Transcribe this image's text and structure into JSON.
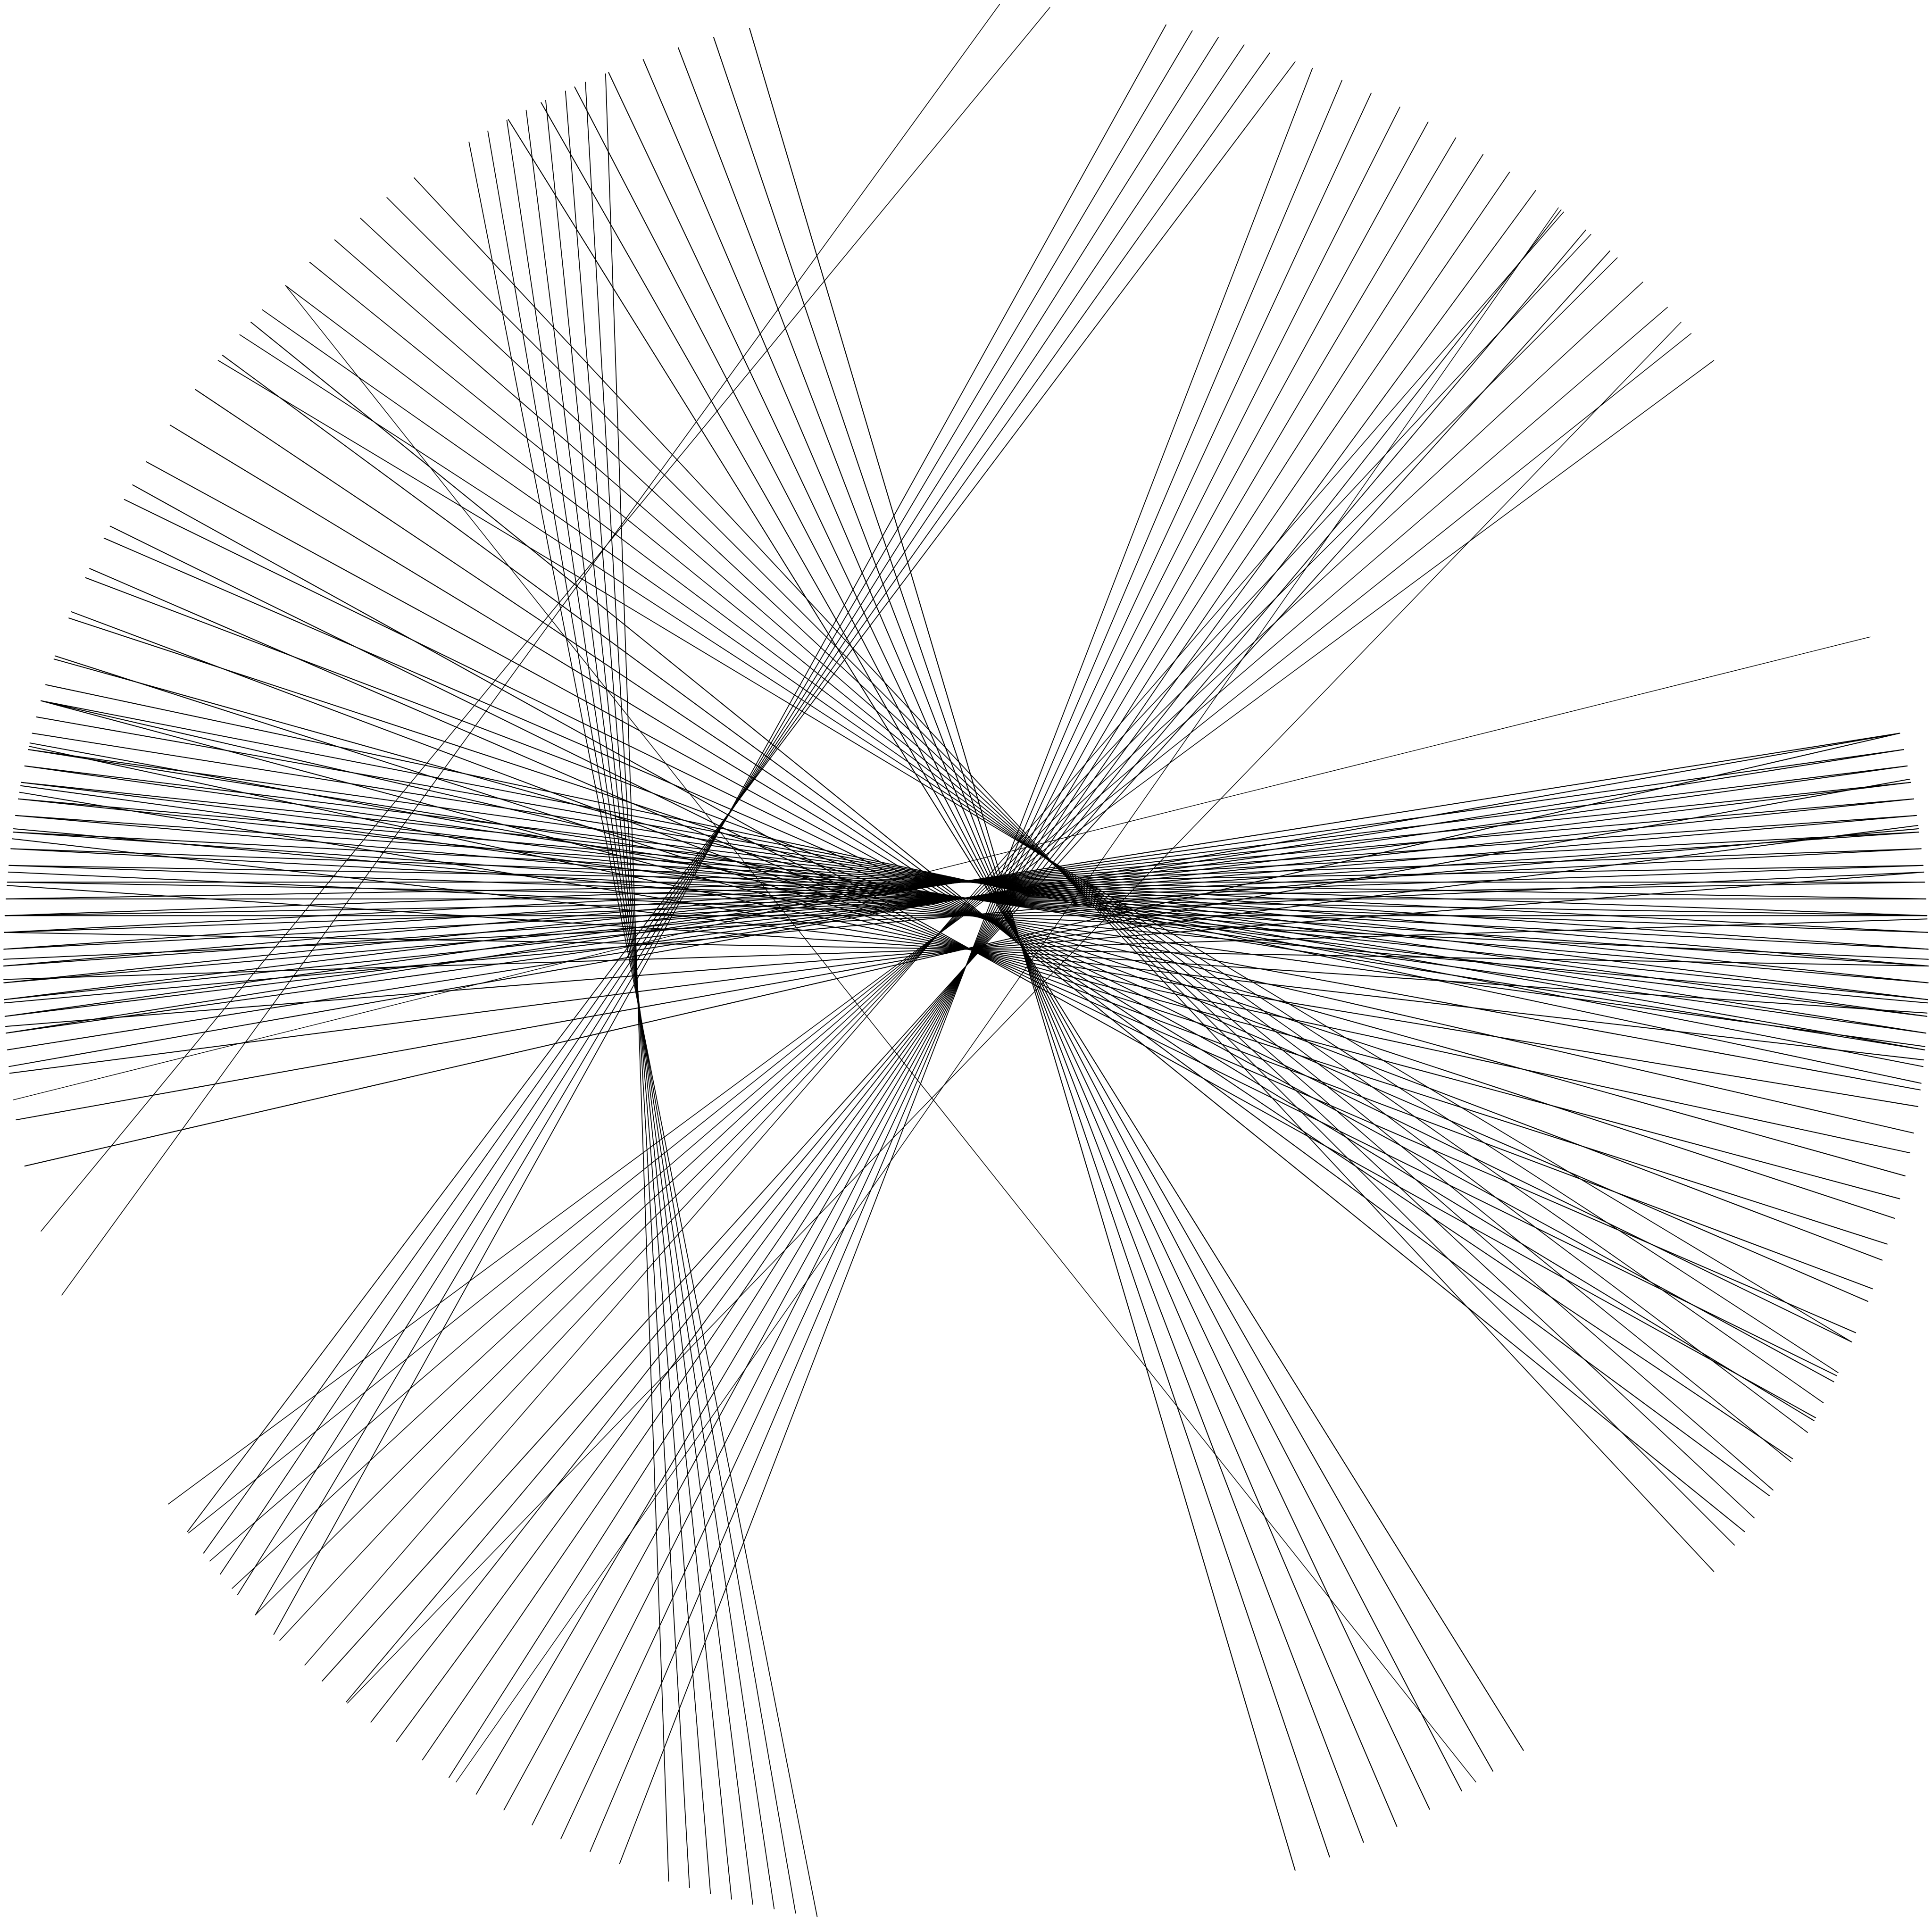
{
  "artwork": {
    "background_color": "#ffffff",
    "line_color": "#000000",
    "description": ""
  }
}
